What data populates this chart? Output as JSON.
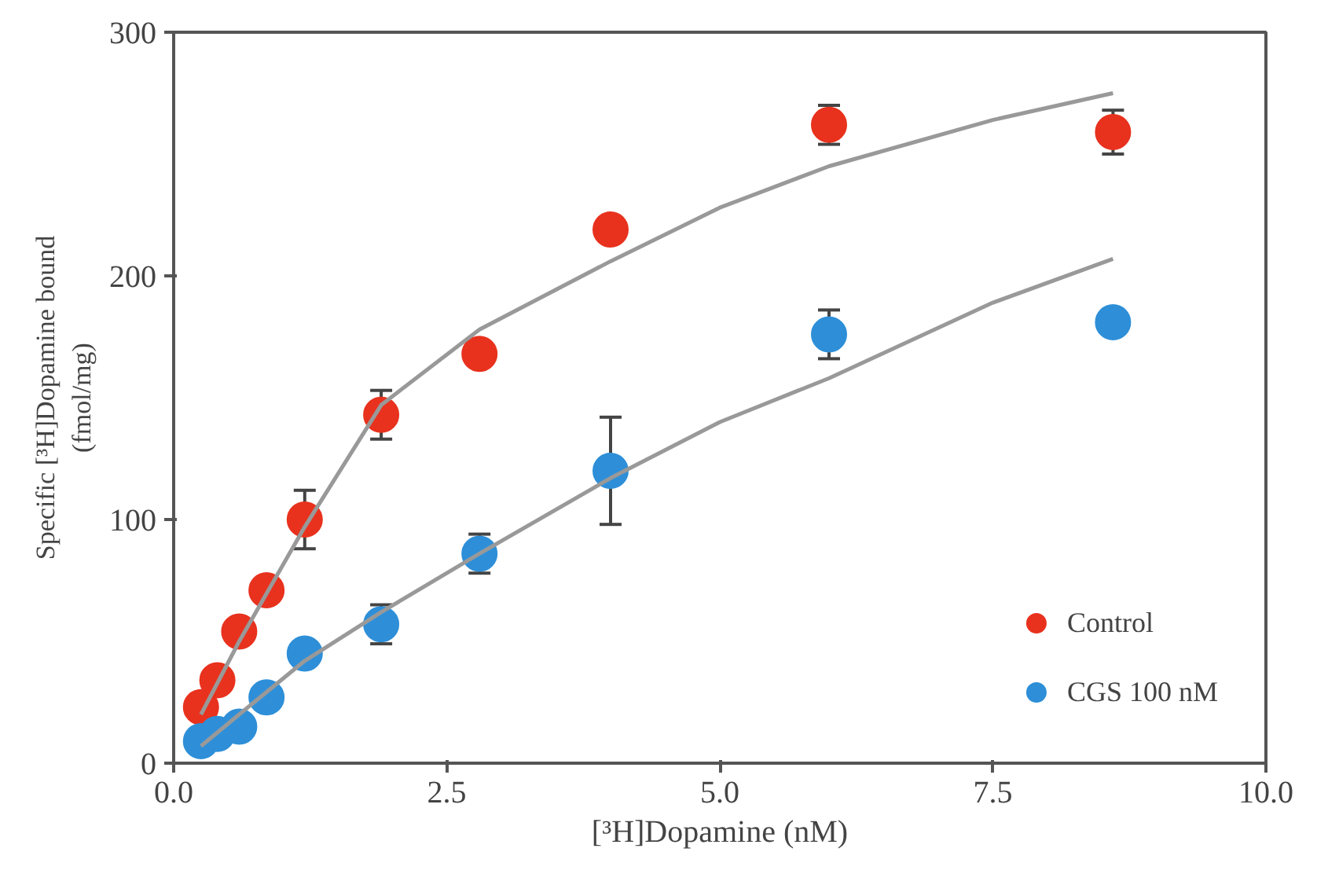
{
  "chart_data": {
    "type": "scatter",
    "xlabel": "[³H]Dopamine (nM)",
    "ylabel": "Specific [³H]Dopamine bound\n(fmol/mg)",
    "xlim": [
      0,
      10
    ],
    "ylim": [
      0,
      300
    ],
    "xticks": [
      {
        "value": 0,
        "label": "0.0"
      },
      2.5,
      {
        "value": 5,
        "label": "5.0"
      },
      7.5,
      {
        "value": 10,
        "label": "10.0"
      }
    ],
    "yticks": [
      0,
      100,
      200,
      300
    ],
    "grid": false,
    "legend": "bottom right",
    "marker": "circle",
    "series": [
      {
        "name": "Control",
        "color": "#e8321e",
        "x": [
          0.25,
          0.4,
          0.6,
          0.85,
          1.2,
          1.9,
          2.8,
          4,
          6,
          8.6
        ],
        "values": [
          23,
          34,
          54,
          71,
          100,
          143,
          168,
          219,
          262,
          259
        ],
        "errors": [
          null,
          null,
          null,
          null,
          12,
          10,
          null,
          null,
          8,
          9
        ]
      },
      {
        "name": "CGS 100 nM",
        "color": "#2e8fd8",
        "x": [
          0.25,
          0.4,
          0.6,
          0.85,
          1.2,
          1.9,
          2.8,
          4,
          6,
          8.6
        ],
        "values": [
          9,
          12,
          15,
          27,
          45,
          57,
          86,
          120,
          176,
          181
        ],
        "errors": [
          null,
          null,
          null,
          null,
          null,
          8,
          8,
          22,
          10,
          null
        ]
      },
      {
        "type": "line",
        "marker": "none",
        "color": "#999999",
        "x": [
          0.25,
          0.6,
          1.2,
          1.9,
          2.8,
          4,
          5,
          6,
          7.5,
          8.6
        ],
        "values": [
          20,
          50,
          97,
          147,
          178,
          206,
          228,
          245,
          264,
          275
        ]
      },
      {
        "type": "line",
        "marker": "none",
        "color": "#999999",
        "x": [
          0.25,
          0.6,
          1.2,
          1.9,
          2.8,
          4,
          5,
          6,
          7.5,
          8.6
        ],
        "values": [
          7,
          20,
          42,
          62,
          86,
          117,
          140,
          158,
          189,
          207
        ]
      }
    ]
  }
}
